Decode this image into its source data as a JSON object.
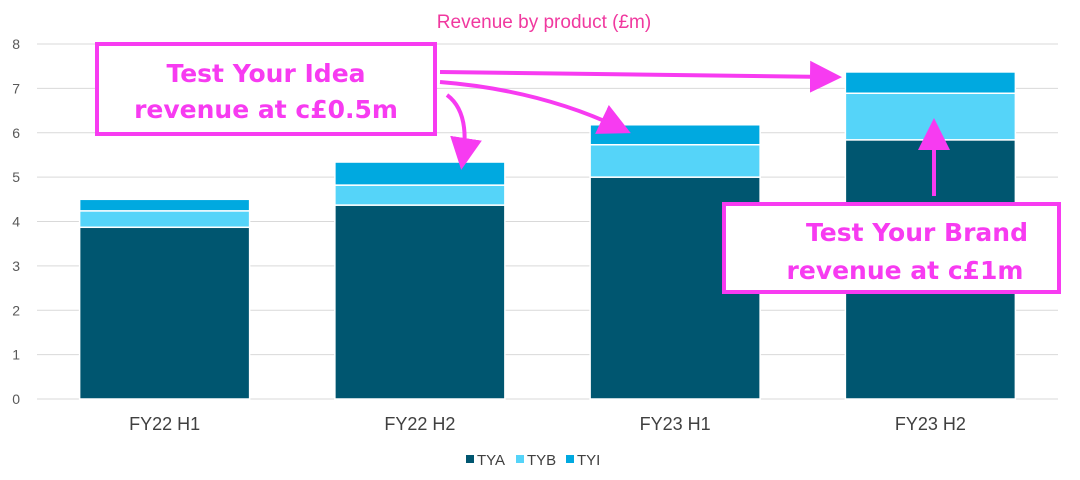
{
  "chart_data": {
    "type": "bar",
    "stacked": true,
    "title": "Revenue by product (£m)",
    "categories": [
      "FY22 H1",
      "FY22 H2",
      "FY23 H1",
      "FY23 H2"
    ],
    "series": [
      {
        "name": "TYA",
        "color": "#005670",
        "values": [
          3.87,
          4.37,
          5.0,
          5.84
        ]
      },
      {
        "name": "TYB",
        "color": "#55D4F9",
        "values": [
          0.37,
          0.45,
          0.73,
          1.05
        ]
      },
      {
        "name": "TYI",
        "color": "#00A9E0",
        "values": [
          0.26,
          0.52,
          0.45,
          0.48
        ]
      }
    ],
    "ylim": [
      0,
      8
    ],
    "yticks": [
      0,
      1,
      2,
      3,
      4,
      5,
      6,
      7,
      8
    ],
    "grid": true,
    "legend": "bottom",
    "annotations": [
      {
        "lines": [
          "Test Your Idea",
          "revenue at c£0.5m"
        ],
        "color": "#F73BF1"
      },
      {
        "lines": [
          "Test Your Brand",
          "revenue at c£1m"
        ],
        "color": "#F73BF1"
      }
    ],
    "title_color": "#F0399F",
    "grid_color": "#D9D9D9"
  }
}
